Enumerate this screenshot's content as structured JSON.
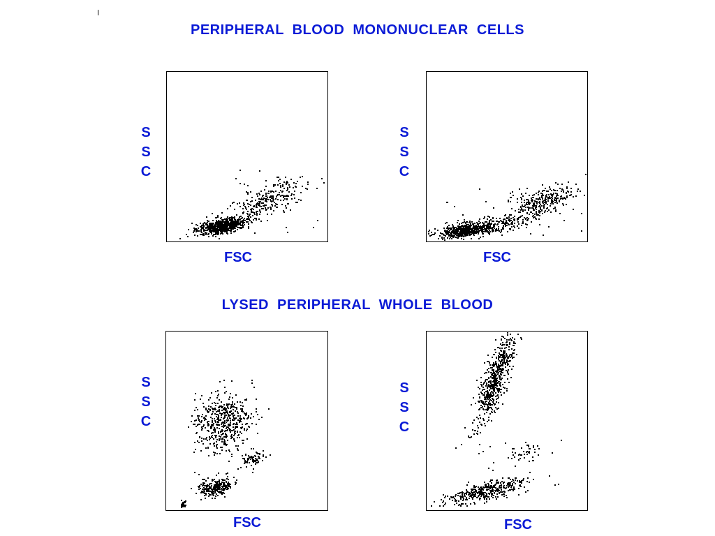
{
  "colors": {
    "label": "#0b1bd6",
    "dots": "#000000"
  },
  "sections": {
    "pbmc": {
      "title": "PERIPHERAL  BLOOD  MONONUCLEAR  CELLS"
    },
    "lysed": {
      "title": "LYSED  PERIPHERAL  WHOLE  BLOOD"
    }
  },
  "plots": [
    {
      "id": "pbmc-left",
      "xlabel": "FSC",
      "ylabel": [
        "S",
        "S",
        "C"
      ]
    },
    {
      "id": "pbmc-right",
      "xlabel": "FSC",
      "ylabel": [
        "S",
        "S",
        "C"
      ]
    },
    {
      "id": "lysed-left",
      "xlabel": "FSC",
      "ylabel": [
        "S",
        "S",
        "C"
      ]
    },
    {
      "id": "lysed-right",
      "xlabel": "FSC",
      "ylabel": [
        "S",
        "S",
        "C"
      ]
    }
  ]
}
